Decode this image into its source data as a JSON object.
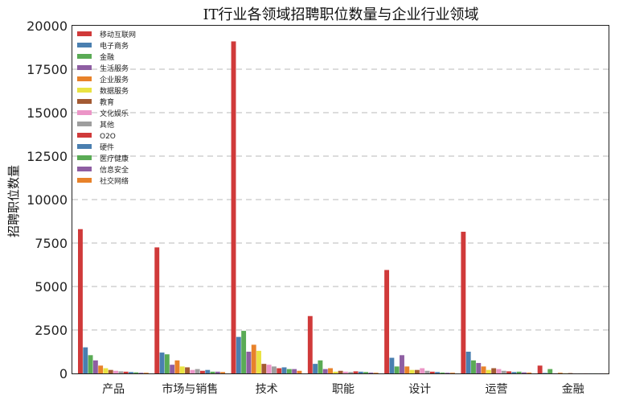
{
  "chart_data": {
    "type": "bar",
    "title": "IT行业各领域招聘职位数量与企业行业领域",
    "ylabel": "招聘职位数量",
    "xlabel": "",
    "ylim": [
      0,
      20000
    ],
    "yticks": [
      0,
      2500,
      5000,
      7500,
      10000,
      12500,
      15000,
      17500,
      20000
    ],
    "grid": true,
    "legend_position": "top-left",
    "categories": [
      "产品",
      "市场与销售",
      "技术",
      "职能",
      "设计",
      "运营",
      "金融"
    ],
    "series": [
      {
        "name": "移动互联网",
        "color": "#d03a3a",
        "values": [
          8300,
          7250,
          19100,
          3300,
          5950,
          8150,
          450
        ]
      },
      {
        "name": "电子商务",
        "color": "#4a7fb0",
        "values": [
          1500,
          1200,
          2100,
          550,
          900,
          1250,
          30
        ]
      },
      {
        "name": "金融",
        "color": "#5aab55",
        "values": [
          1050,
          1100,
          2450,
          750,
          400,
          750,
          250
        ]
      },
      {
        "name": "生活服务",
        "color": "#8e5ea2",
        "values": [
          750,
          500,
          1250,
          250,
          1050,
          600,
          10
        ]
      },
      {
        "name": "企业服务",
        "color": "#e8822a",
        "values": [
          450,
          750,
          1650,
          300,
          400,
          400,
          40
        ]
      },
      {
        "name": "数据服务",
        "color": "#e9e342",
        "values": [
          300,
          400,
          1300,
          100,
          200,
          200,
          10
        ]
      },
      {
        "name": "教育",
        "color": "#a35a33",
        "values": [
          200,
          350,
          550,
          150,
          200,
          300,
          20
        ]
      },
      {
        "name": "文化娱乐",
        "color": "#ec95c7",
        "values": [
          150,
          200,
          500,
          100,
          300,
          250,
          5
        ]
      },
      {
        "name": "其他",
        "color": "#9e9e9e",
        "values": [
          120,
          250,
          400,
          80,
          150,
          150,
          5
        ]
      },
      {
        "name": "O2O",
        "color": "#d03a3a",
        "values": [
          100,
          150,
          300,
          120,
          100,
          120,
          5
        ]
      },
      {
        "name": "硬件",
        "color": "#4a7fb0",
        "values": [
          80,
          200,
          350,
          100,
          80,
          80,
          5
        ]
      },
      {
        "name": "医疗健康",
        "color": "#5aab55",
        "values": [
          60,
          100,
          250,
          80,
          50,
          100,
          5
        ]
      },
      {
        "name": "信息安全",
        "color": "#8e5ea2",
        "values": [
          40,
          100,
          250,
          50,
          40,
          60,
          5
        ]
      },
      {
        "name": "社交网络",
        "color": "#e8822a",
        "values": [
          40,
          80,
          150,
          40,
          40,
          50,
          5
        ]
      }
    ]
  }
}
